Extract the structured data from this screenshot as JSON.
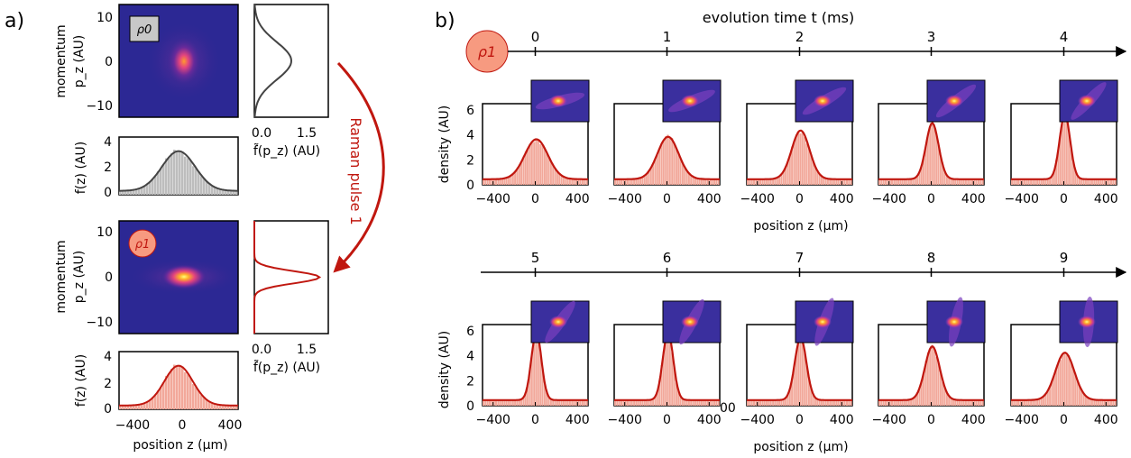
{
  "panel_a": {
    "label": "a)",
    "heatmaps": [
      {
        "badge": "ρ0",
        "ylabel_top": "momentum",
        "ylabel_bottom": "p_z (AU)",
        "yticks": [
          "10",
          "0",
          "−10"
        ]
      },
      {
        "badge": "ρ1",
        "ylabel_top": "momentum",
        "ylabel_bottom": "p_z (AU)",
        "yticks": [
          "10",
          "0",
          "−10"
        ]
      }
    ],
    "side_xticks": [
      "0.0",
      "1.5"
    ],
    "side_xlabel": "f̃(p_z) (AU)",
    "hist_ylabel": "f(z) (AU)",
    "hist_yticks": [
      "4",
      "2",
      "0"
    ],
    "hist_xticks": [
      "−400",
      "0",
      "400"
    ],
    "hist_xlabel": "position z (µm)",
    "arrow_label": "Raman pulse 1"
  },
  "panel_b": {
    "label": "b)",
    "time_title": "evolution time t (ms)",
    "badge": "ρ1",
    "ylabel": "density (AU)",
    "ylabel_row2": "density   (AU)",
    "xlabel": "position z (µm)",
    "yticks": [
      "6",
      "4",
      "2",
      "0"
    ],
    "xticks": [
      "−400",
      "0",
      "400"
    ],
    "stray_label": "00"
  },
  "chart_data": [
    {
      "type": "heatmap",
      "name": "momentum vs position, initial state",
      "ylabel": "momentum p_z (AU)",
      "ylim": [
        -12,
        12
      ],
      "peak": {
        "z": 0,
        "p": 0
      },
      "width_z": 130,
      "width_p": 6
    },
    {
      "type": "line",
      "xlabel": "f̃(p_z) (AU)",
      "ylabel": "p_z (AU)",
      "xlim": [
        0,
        2.5
      ],
      "ylim": [
        -12,
        12
      ],
      "profile": "gaussian",
      "peak_value": 1.25,
      "sigma": 4
    },
    {
      "type": "bar",
      "ylabel": "f(z) (AU)",
      "xlim": [
        -500,
        500
      ],
      "ylim": [
        0,
        4.5
      ],
      "peak_value": 3.1,
      "sigma": 140
    },
    {
      "type": "heatmap",
      "name": "momentum vs position, after pulse 1",
      "ylabel": "momentum p_z (AU)",
      "ylim": [
        -12,
        12
      ],
      "peak": {
        "z": 0,
        "p": 0
      },
      "width_z": 90,
      "width_p": 2
    },
    {
      "type": "line",
      "xlabel": "f̃(p_z) (AU)",
      "ylabel": "p_z (AU)",
      "xlim": [
        0,
        2.5
      ],
      "ylim": [
        -12,
        12
      ],
      "profile": "narrow",
      "peak_value": 2.2,
      "sigma": 1.3
    },
    {
      "type": "bar",
      "xlabel": "position z (µm)",
      "ylabel": "f(z) (AU)",
      "xlim": [
        -500,
        500
      ],
      "ylim": [
        0,
        4.5
      ],
      "peak_value": 3.1,
      "sigma": 120
    },
    {
      "type": "bar",
      "title": "evolution time t (ms)",
      "xlabel": "position z (µm)",
      "ylabel": "density (AU)",
      "xlim": [
        -500,
        500
      ],
      "ylim": [
        0,
        6.5
      ],
      "times_ms": [
        0,
        1,
        2,
        3,
        4,
        5,
        6,
        7,
        8,
        9
      ],
      "peak_density": [
        3.2,
        3.4,
        3.9,
        4.5,
        5.2,
        5.4,
        5.4,
        5.0,
        4.3,
        3.8
      ],
      "peak_width": [
        110,
        100,
        85,
        60,
        50,
        48,
        50,
        55,
        70,
        90
      ]
    }
  ]
}
